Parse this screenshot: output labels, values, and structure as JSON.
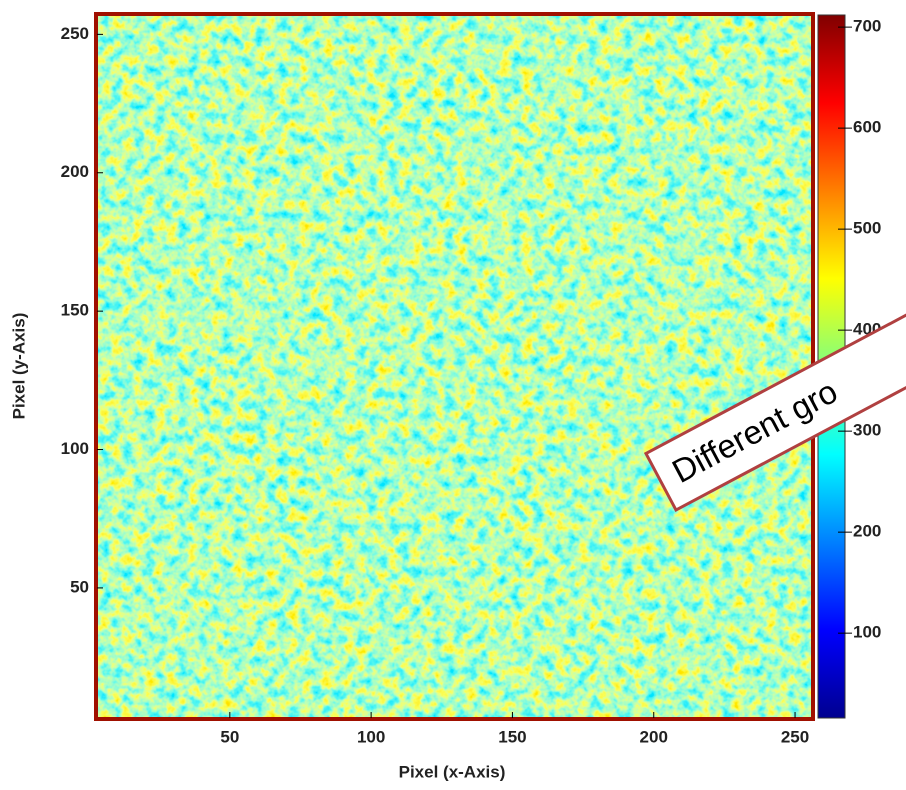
{
  "chart_data": {
    "type": "heatmap",
    "xlabel": "Pixel (x-Axis)",
    "ylabel": "Pixel (y-Axis)",
    "xlim": [
      3,
      256
    ],
    "ylim": [
      3,
      257
    ],
    "xticks": [
      50,
      100,
      150,
      200,
      250
    ],
    "yticks": [
      50,
      100,
      150,
      200,
      250
    ],
    "colorbar": {
      "lim": [
        16,
        712
      ],
      "ticks": [
        100,
        200,
        300,
        400,
        500,
        600,
        700
      ],
      "colormap": "jet"
    },
    "annotation": "Different gro"
  }
}
